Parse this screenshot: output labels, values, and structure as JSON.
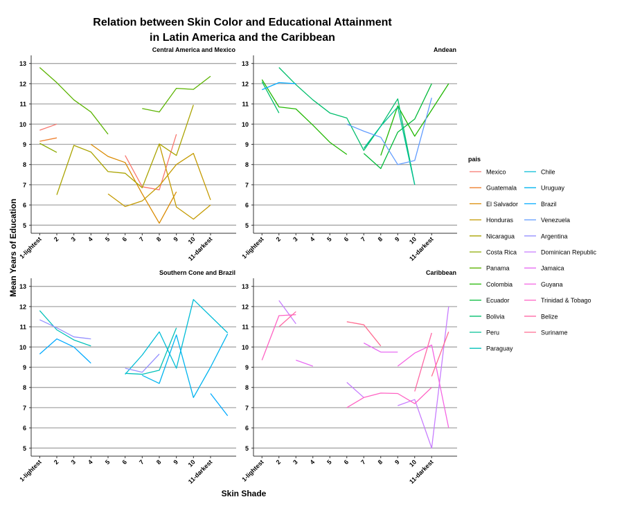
{
  "chart_data": {
    "type": "line",
    "title_line1": "Relation between Skin Color and Educational Attainment",
    "title_line2": "in Latin America and the Caribbean",
    "xlabel": "Skin Shade",
    "ylabel": "Mean Years of Education",
    "xlim": [
      0.5,
      12.5
    ],
    "ylim": [
      4.6,
      13.4
    ],
    "x_ticks": [
      {
        "value": 1,
        "label": "1-lightest"
      },
      {
        "value": 2,
        "label": "2"
      },
      {
        "value": 3,
        "label": "3"
      },
      {
        "value": 4,
        "label": "4"
      },
      {
        "value": 5,
        "label": "5"
      },
      {
        "value": 6,
        "label": "6"
      },
      {
        "value": 7,
        "label": "7"
      },
      {
        "value": 8,
        "label": "8"
      },
      {
        "value": 9,
        "label": "9"
      },
      {
        "value": 10,
        "label": "10"
      },
      {
        "value": 11,
        "label": "11-darkest"
      }
    ],
    "y_ticks": [
      5,
      6,
      7,
      8,
      9,
      10,
      11,
      12,
      13
    ],
    "grid": true,
    "legend": {
      "title": "pais",
      "position": "right",
      "entries": [
        {
          "name": "Mexico",
          "color": "#F8766D"
        },
        {
          "name": "Guatemala",
          "color": "#EE7F2E"
        },
        {
          "name": "El Salvador",
          "color": "#DA8A00"
        },
        {
          "name": "Honduras",
          "color": "#C49A00"
        },
        {
          "name": "Nicaragua",
          "color": "#AAA300"
        },
        {
          "name": "Costa Rica",
          "color": "#8CAB00"
        },
        {
          "name": "Panama",
          "color": "#5BB300"
        },
        {
          "name": "Colombia",
          "color": "#20B700"
        },
        {
          "name": "Ecuador",
          "color": "#00BA38"
        },
        {
          "name": "Bolivia",
          "color": "#00BE6C"
        },
        {
          "name": "Peru",
          "color": "#00C094"
        },
        {
          "name": "Paraguay",
          "color": "#00C0B8"
        },
        {
          "name": "Chile",
          "color": "#00BCD6"
        },
        {
          "name": "Uruguay",
          "color": "#00B4EF"
        },
        {
          "name": "Brazil",
          "color": "#00A9FF"
        },
        {
          "name": "Venezuela",
          "color": "#619CFF"
        },
        {
          "name": "Argentina",
          "color": "#9590FF"
        },
        {
          "name": "Dominican Republic",
          "color": "#C77CFF"
        },
        {
          "name": "Jamaica",
          "color": "#E76BF3"
        },
        {
          "name": "Guyana",
          "color": "#F564E3"
        },
        {
          "name": "Trinidad & Tobago",
          "color": "#FF61C3"
        },
        {
          "name": "Belize",
          "color": "#FF67A4"
        },
        {
          "name": "Suriname",
          "color": "#FF6C91"
        }
      ]
    },
    "panels": [
      {
        "title": "Central America and Mexico",
        "series": [
          {
            "color": "#F8766D",
            "points": [
              [
                1,
                9.7
              ],
              [
                2,
                10.0
              ]
            ]
          },
          {
            "color": "#F8766D",
            "points": [
              [
                6,
                8.45
              ],
              [
                7,
                6.9
              ],
              [
                8,
                6.75
              ],
              [
                9,
                9.5
              ]
            ]
          },
          {
            "color": "#EE7F2E",
            "points": [
              [
                1,
                9.15
              ],
              [
                2,
                9.32
              ]
            ]
          },
          {
            "color": "#DA8A00",
            "points": [
              [
                4,
                9.0
              ],
              [
                5,
                8.4
              ],
              [
                6,
                8.1
              ],
              [
                7,
                6.55
              ],
              [
                8,
                5.1
              ],
              [
                9,
                6.65
              ]
            ]
          },
          {
            "color": "#C49A00",
            "points": [
              [
                5,
                6.55
              ],
              [
                6,
                5.92
              ],
              [
                7,
                6.2
              ],
              [
                8,
                6.95
              ],
              [
                9,
                8.0
              ],
              [
                10,
                8.55
              ],
              [
                11,
                6.25
              ]
            ]
          },
          {
            "color": "#C49A00",
            "points": [
              [
                8,
                9.02
              ],
              [
                9,
                5.9
              ],
              [
                10,
                5.3
              ],
              [
                11,
                6.0
              ]
            ]
          },
          {
            "color": "#AAA300",
            "points": [
              [
                2,
                6.5
              ],
              [
                3,
                8.95
              ],
              [
                4,
                8.62
              ],
              [
                5,
                7.65
              ],
              [
                6,
                7.57
              ],
              [
                7,
                6.85
              ],
              [
                8,
                9.02
              ],
              [
                9,
                8.45
              ],
              [
                10,
                10.95
              ]
            ]
          },
          {
            "color": "#8CAB00",
            "points": [
              [
                1,
                9.05
              ],
              [
                2,
                8.6
              ]
            ]
          },
          {
            "color": "#5BB300",
            "points": [
              [
                1,
                12.8
              ],
              [
                2,
                12.05
              ],
              [
                3,
                11.2
              ],
              [
                4,
                10.6
              ],
              [
                5,
                9.5
              ]
            ]
          },
          {
            "color": "#5BB300",
            "points": [
              [
                7,
                10.77
              ],
              [
                8,
                10.6
              ],
              [
                9,
                11.77
              ],
              [
                10,
                11.72
              ],
              [
                11,
                12.37
              ]
            ]
          }
        ]
      },
      {
        "title": "Andean",
        "series": [
          {
            "color": "#20B700",
            "points": [
              [
                1,
                12.2
              ],
              [
                2,
                10.85
              ],
              [
                3,
                10.75
              ],
              [
                4,
                9.95
              ],
              [
                5,
                9.1
              ],
              [
                6,
                8.5
              ]
            ]
          },
          {
            "color": "#20B700",
            "points": [
              [
                8,
                8.45
              ],
              [
                9,
                10.9
              ],
              [
                10,
                9.4
              ],
              [
                11,
                10.7
              ],
              [
                12,
                12.0
              ]
            ]
          },
          {
            "color": "#00BA38",
            "points": [
              [
                7,
                8.55
              ],
              [
                8,
                7.8
              ],
              [
                9,
                9.6
              ],
              [
                10,
                10.25
              ],
              [
                11,
                12.0
              ]
            ]
          },
          {
            "color": "#00BE6C",
            "points": [
              [
                1,
                12.1
              ],
              [
                2,
                10.55
              ]
            ]
          },
          {
            "color": "#00BE6C",
            "points": [
              [
                2,
                12.8
              ],
              [
                3,
                11.95
              ],
              [
                4,
                11.2
              ],
              [
                5,
                10.55
              ],
              [
                6,
                10.3
              ],
              [
                7,
                8.7
              ],
              [
                8,
                9.9
              ],
              [
                9,
                11.25
              ],
              [
                10,
                7.0
              ]
            ]
          },
          {
            "color": "#00C094",
            "points": [
              [
                7,
                8.8
              ],
              [
                8,
                9.9
              ],
              [
                9,
                10.85
              ],
              [
                10,
                7.0
              ]
            ]
          },
          {
            "color": "#00A9FF",
            "points": [
              [
                1,
                11.7
              ],
              [
                2,
                12.05
              ],
              [
                3,
                12.0
              ]
            ]
          },
          {
            "color": "#619CFF",
            "points": [
              [
                6,
                10.0
              ],
              [
                7,
                9.65
              ],
              [
                8,
                9.35
              ],
              [
                9,
                8.0
              ],
              [
                10,
                8.2
              ],
              [
                11,
                11.3
              ]
            ]
          }
        ]
      },
      {
        "title": "Southern Cone and Brazil",
        "series": [
          {
            "color": "#00C0B8",
            "points": [
              [
                1,
                11.8
              ],
              [
                2,
                10.85
              ],
              [
                3,
                10.35
              ],
              [
                4,
                10.05
              ]
            ]
          },
          {
            "color": "#00C0B8",
            "points": [
              [
                6,
                8.7
              ],
              [
                7,
                8.65
              ],
              [
                8,
                8.85
              ],
              [
                9,
                10.95
              ]
            ]
          },
          {
            "color": "#00BCD6",
            "points": [
              [
                6,
                8.65
              ],
              [
                7,
                9.6
              ],
              [
                8,
                10.75
              ],
              [
                9,
                8.95
              ],
              [
                10,
                12.35
              ],
              [
                12,
                10.7
              ]
            ]
          },
          {
            "color": "#00B4EF",
            "points": [
              [
                7,
                8.6
              ],
              [
                8,
                8.2
              ],
              [
                9,
                10.6
              ],
              [
                10,
                7.5
              ],
              [
                11,
                9.0
              ],
              [
                12,
                10.65
              ]
            ]
          },
          {
            "color": "#00A9FF",
            "points": [
              [
                1,
                9.65
              ],
              [
                2,
                10.4
              ],
              [
                3,
                10.0
              ],
              [
                4,
                9.2
              ]
            ]
          },
          {
            "color": "#00A9FF",
            "points": [
              [
                11,
                7.7
              ],
              [
                12,
                6.6
              ]
            ]
          },
          {
            "color": "#9590FF",
            "points": [
              [
                1,
                11.35
              ],
              [
                2,
                10.95
              ],
              [
                3,
                10.5
              ],
              [
                4,
                10.4
              ]
            ]
          },
          {
            "color": "#9590FF",
            "points": [
              [
                6,
                8.95
              ],
              [
                7,
                8.75
              ],
              [
                8,
                9.65
              ]
            ]
          }
        ]
      },
      {
        "title": "Caribbean",
        "series": [
          {
            "color": "#C77CFF",
            "points": [
              [
                2,
                12.3
              ],
              [
                3,
                11.15
              ]
            ]
          },
          {
            "color": "#C77CFF",
            "points": [
              [
                6,
                8.25
              ],
              [
                7,
                7.5
              ]
            ]
          },
          {
            "color": "#C77CFF",
            "points": [
              [
                9,
                7.1
              ],
              [
                10,
                7.4
              ],
              [
                11,
                5.0
              ],
              [
                12,
                12.0
              ]
            ]
          },
          {
            "color": "#E76BF3",
            "points": [
              [
                3,
                9.35
              ],
              [
                4,
                9.05
              ]
            ]
          },
          {
            "color": "#E76BF3",
            "points": [
              [
                7,
                10.2
              ],
              [
                8,
                9.75
              ],
              [
                9,
                9.75
              ]
            ]
          },
          {
            "color": "#F564E3",
            "points": [
              [
                9,
                9.05
              ],
              [
                10,
                9.7
              ],
              [
                11,
                10.1
              ],
              [
                12,
                6.0
              ]
            ]
          },
          {
            "color": "#FF61C3",
            "points": [
              [
                1,
                9.35
              ],
              [
                2,
                11.55
              ],
              [
                3,
                11.6
              ]
            ]
          },
          {
            "color": "#FF61C3",
            "points": [
              [
                6,
                7.0
              ],
              [
                7,
                7.5
              ],
              [
                8,
                7.72
              ],
              [
                9,
                7.7
              ],
              [
                10,
                7.2
              ],
              [
                11,
                8.0
              ]
            ]
          },
          {
            "color": "#FF67A4",
            "points": [
              [
                2,
                11.0
              ],
              [
                3,
                11.75
              ]
            ]
          },
          {
            "color": "#FF67A4",
            "points": [
              [
                10,
                7.8
              ],
              [
                11,
                10.7
              ]
            ]
          },
          {
            "color": "#FF6C91",
            "points": [
              [
                6,
                11.25
              ],
              [
                7,
                11.1
              ],
              [
                8,
                10.05
              ]
            ]
          },
          {
            "color": "#FF6C91",
            "points": [
              [
                11,
                8.55
              ],
              [
                12,
                10.75
              ]
            ]
          }
        ]
      }
    ]
  }
}
